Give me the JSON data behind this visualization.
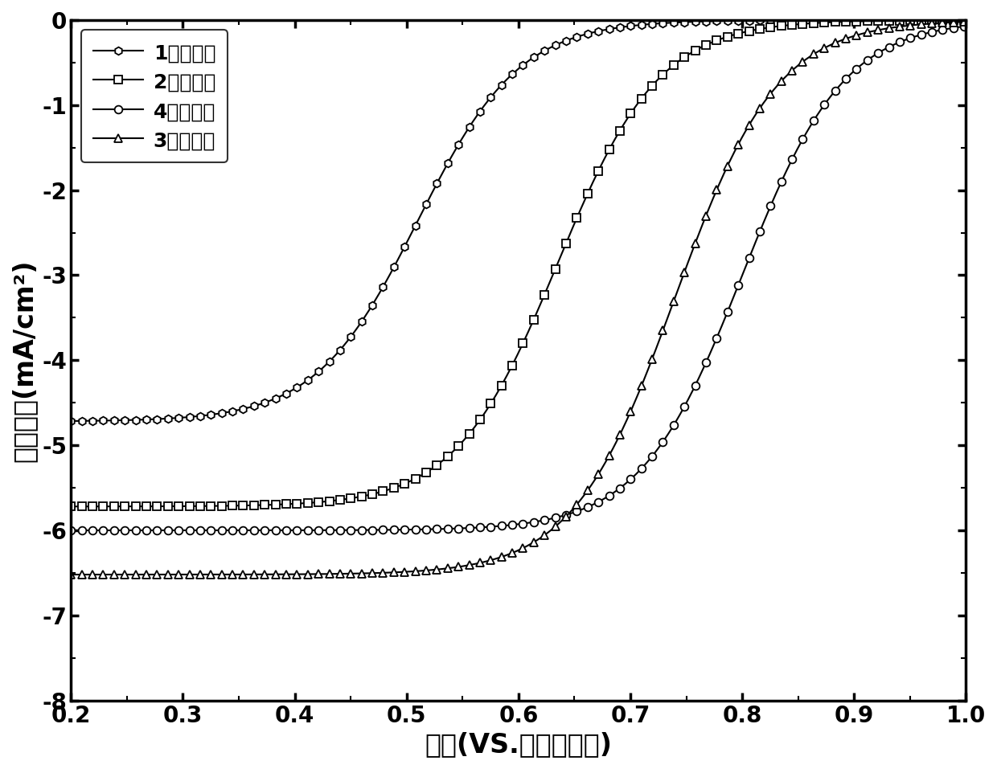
{
  "xlabel": "电压(VS.可逆氢电极)",
  "ylabel": "电流密度(mA/cm²)",
  "xlim": [
    0.2,
    1.0
  ],
  "ylim": [
    -8,
    0
  ],
  "xticks": [
    0.2,
    0.3,
    0.4,
    0.5,
    0.6,
    0.7,
    0.8,
    0.9,
    1.0
  ],
  "yticks": [
    0,
    -1,
    -2,
    -3,
    -4,
    -5,
    -6,
    -7,
    -8
  ],
  "series": [
    {
      "label": "1号催化剑",
      "marker": "h",
      "plateau": -4.72,
      "half_wave": 0.51,
      "slope": 22.0
    },
    {
      "label": "2号催化剑",
      "marker": "s",
      "plateau": -5.72,
      "half_wave": 0.635,
      "slope": 22.0
    },
    {
      "label": "4号催化剑",
      "marker": "o",
      "plateau": -6.0,
      "half_wave": 0.8,
      "slope": 22.0
    },
    {
      "label": "3号催化剑",
      "marker": "^",
      "plateau": -6.52,
      "half_wave": 0.74,
      "slope": 22.0
    }
  ]
}
